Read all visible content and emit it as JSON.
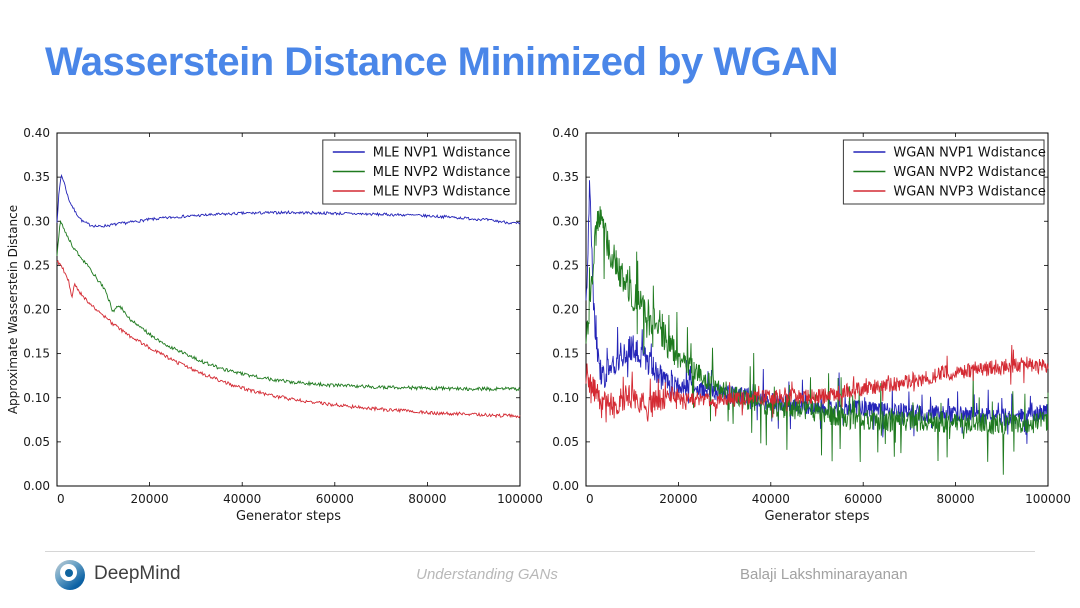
{
  "slide": {
    "title": "Wasserstein Distance Minimized by WGAN",
    "title_color": "#4a86e8"
  },
  "footer": {
    "logo_icon": "deepmind-swirl-icon",
    "brand": "DeepMind",
    "center_text": "Understanding GANs",
    "right_text": "Balaji Lakshminarayanan"
  },
  "chart_data": [
    {
      "type": "line",
      "title": "",
      "xlabel": "Generator steps",
      "ylabel": "Approximate Wasserstein Distance",
      "xlim": [
        0,
        100000
      ],
      "ylim": [
        0.0,
        0.4
      ],
      "grid": false,
      "legend_position": "upper right",
      "xticks": [
        0,
        20000,
        40000,
        60000,
        80000,
        100000
      ],
      "xtick_labels": [
        "0",
        "20000",
        "40000",
        "60000",
        "80000",
        "100000"
      ],
      "yticks": [
        0.0,
        0.05,
        0.1,
        0.15,
        0.2,
        0.25,
        0.3,
        0.35,
        0.4
      ],
      "ytick_labels": [
        "0.00",
        "0.05",
        "0.10",
        "0.15",
        "0.20",
        "0.25",
        "0.30",
        "0.35",
        "0.40"
      ],
      "series": [
        {
          "name": "MLE NVP1 Wdistance",
          "color": "#2424b8",
          "noise": 0.0016,
          "spike": 0,
          "keypoints": [
            [
              0,
              0.3
            ],
            [
              400,
              0.33
            ],
            [
              900,
              0.353
            ],
            [
              1500,
              0.345
            ],
            [
              2500,
              0.325
            ],
            [
              4000,
              0.31
            ],
            [
              5500,
              0.3
            ],
            [
              7000,
              0.296
            ],
            [
              9000,
              0.294
            ],
            [
              12000,
              0.296
            ],
            [
              16000,
              0.299
            ],
            [
              20000,
              0.302
            ],
            [
              26000,
              0.305
            ],
            [
              32000,
              0.307
            ],
            [
              40000,
              0.309
            ],
            [
              50000,
              0.31
            ],
            [
              60000,
              0.309
            ],
            [
              68000,
              0.308
            ],
            [
              76000,
              0.307
            ],
            [
              84000,
              0.305
            ],
            [
              92000,
              0.302
            ],
            [
              100000,
              0.297
            ]
          ]
        },
        {
          "name": "MLE NVP2 Wdistance",
          "color": "#1f7a1f",
          "noise": 0.002,
          "spike": 0,
          "keypoints": [
            [
              0,
              0.262
            ],
            [
              700,
              0.3
            ],
            [
              1500,
              0.292
            ],
            [
              3000,
              0.275
            ],
            [
              5000,
              0.26
            ],
            [
              7000,
              0.247
            ],
            [
              9000,
              0.232
            ],
            [
              10500,
              0.222
            ],
            [
              11500,
              0.206
            ],
            [
              12200,
              0.196
            ],
            [
              13000,
              0.205
            ],
            [
              14000,
              0.202
            ],
            [
              15000,
              0.192
            ],
            [
              16500,
              0.186
            ],
            [
              18000,
              0.18
            ],
            [
              20000,
              0.172
            ],
            [
              22000,
              0.165
            ],
            [
              24000,
              0.159
            ],
            [
              26000,
              0.154
            ],
            [
              28000,
              0.149
            ],
            [
              30000,
              0.144
            ],
            [
              33000,
              0.138
            ],
            [
              36000,
              0.132
            ],
            [
              40000,
              0.127
            ],
            [
              45000,
              0.122
            ],
            [
              50000,
              0.118
            ],
            [
              55000,
              0.116
            ],
            [
              60000,
              0.114
            ],
            [
              70000,
              0.112
            ],
            [
              80000,
              0.111
            ],
            [
              90000,
              0.11
            ],
            [
              100000,
              0.11
            ]
          ]
        },
        {
          "name": "MLE NVP3 Wdistance",
          "color": "#d42a33",
          "noise": 0.002,
          "spike": 0,
          "keypoints": [
            [
              0,
              0.255
            ],
            [
              1200,
              0.247
            ],
            [
              2500,
              0.232
            ],
            [
              3200,
              0.213
            ],
            [
              3800,
              0.228
            ],
            [
              5000,
              0.219
            ],
            [
              6500,
              0.21
            ],
            [
              8000,
              0.202
            ],
            [
              10000,
              0.193
            ],
            [
              12000,
              0.184
            ],
            [
              14000,
              0.176
            ],
            [
              16000,
              0.169
            ],
            [
              18000,
              0.163
            ],
            [
              20000,
              0.157
            ],
            [
              23000,
              0.148
            ],
            [
              26000,
              0.14
            ],
            [
              29000,
              0.133
            ],
            [
              32000,
              0.126
            ],
            [
              35000,
              0.12
            ],
            [
              38000,
              0.114
            ],
            [
              42000,
              0.108
            ],
            [
              46000,
              0.103
            ],
            [
              50000,
              0.099
            ],
            [
              55000,
              0.095
            ],
            [
              60000,
              0.092
            ],
            [
              65000,
              0.089
            ],
            [
              70000,
              0.087
            ],
            [
              75000,
              0.085
            ],
            [
              80000,
              0.083
            ],
            [
              85000,
              0.082
            ],
            [
              90000,
              0.081
            ],
            [
              95000,
              0.08
            ],
            [
              100000,
              0.079
            ]
          ]
        }
      ]
    },
    {
      "type": "line",
      "title": "",
      "xlabel": "Generator steps",
      "ylabel": "",
      "xlim": [
        0,
        100000
      ],
      "ylim": [
        0.0,
        0.4
      ],
      "grid": false,
      "legend_position": "upper right",
      "xticks": [
        0,
        20000,
        40000,
        60000,
        80000,
        100000
      ],
      "xtick_labels": [
        "0",
        "20000",
        "40000",
        "60000",
        "80000",
        "100000"
      ],
      "yticks": [
        0.0,
        0.05,
        0.1,
        0.15,
        0.2,
        0.25,
        0.3,
        0.35,
        0.4
      ],
      "ytick_labels": [
        "0.00",
        "0.05",
        "0.10",
        "0.15",
        "0.20",
        "0.25",
        "0.30",
        "0.35",
        "0.40"
      ],
      "series": [
        {
          "name": "WGAN NVP1 Wdistance",
          "color": "#2424b8",
          "noise": 0.01,
          "spike": 0.034,
          "keypoints": [
            [
              0,
              0.205
            ],
            [
              500,
              0.28
            ],
            [
              800,
              0.352
            ],
            [
              1200,
              0.27
            ],
            [
              1800,
              0.19
            ],
            [
              2500,
              0.15
            ],
            [
              3200,
              0.128
            ],
            [
              4000,
              0.125
            ],
            [
              5000,
              0.133
            ],
            [
              6500,
              0.142
            ],
            [
              8000,
              0.15
            ],
            [
              9500,
              0.156
            ],
            [
              11000,
              0.153
            ],
            [
              12500,
              0.146
            ],
            [
              14000,
              0.137
            ],
            [
              15500,
              0.125
            ],
            [
              17000,
              0.117
            ],
            [
              19000,
              0.112
            ],
            [
              21000,
              0.112
            ],
            [
              24000,
              0.11
            ],
            [
              27000,
              0.108
            ],
            [
              30000,
              0.106
            ],
            [
              33000,
              0.103
            ],
            [
              36000,
              0.1
            ],
            [
              40000,
              0.096
            ],
            [
              44000,
              0.093
            ],
            [
              48000,
              0.091
            ],
            [
              52000,
              0.089
            ],
            [
              56000,
              0.088
            ],
            [
              60000,
              0.087
            ],
            [
              65000,
              0.085
            ],
            [
              70000,
              0.084
            ],
            [
              75000,
              0.082
            ],
            [
              80000,
              0.081
            ],
            [
              85000,
              0.079
            ],
            [
              90000,
              0.078
            ],
            [
              95000,
              0.08
            ],
            [
              100000,
              0.084
            ]
          ]
        },
        {
          "name": "WGAN NVP2 Wdistance",
          "color": "#1f7a1f",
          "noise": 0.012,
          "spike": 0.05,
          "keypoints": [
            [
              0,
              0.165
            ],
            [
              1000,
              0.21
            ],
            [
              2000,
              0.28
            ],
            [
              2800,
              0.31
            ],
            [
              3500,
              0.292
            ],
            [
              4500,
              0.278
            ],
            [
              5500,
              0.262
            ],
            [
              6500,
              0.252
            ],
            [
              7500,
              0.24
            ],
            [
              8500,
              0.228
            ],
            [
              9500,
              0.22
            ],
            [
              10500,
              0.213
            ],
            [
              12000,
              0.205
            ],
            [
              13500,
              0.195
            ],
            [
              15000,
              0.185
            ],
            [
              16500,
              0.173
            ],
            [
              18000,
              0.16
            ],
            [
              19500,
              0.15
            ],
            [
              21000,
              0.143
            ],
            [
              23000,
              0.133
            ],
            [
              25000,
              0.125
            ],
            [
              27000,
              0.118
            ],
            [
              29000,
              0.111
            ],
            [
              31000,
              0.105
            ],
            [
              33000,
              0.1
            ],
            [
              35000,
              0.096
            ],
            [
              37000,
              0.092
            ],
            [
              39000,
              0.089
            ],
            [
              41000,
              0.086
            ],
            [
              44000,
              0.086
            ],
            [
              47000,
              0.088
            ],
            [
              50000,
              0.084
            ],
            [
              53000,
              0.08
            ],
            [
              56000,
              0.077
            ],
            [
              60000,
              0.075
            ],
            [
              65000,
              0.074
            ],
            [
              70000,
              0.073
            ],
            [
              75000,
              0.073
            ],
            [
              80000,
              0.072
            ],
            [
              85000,
              0.071
            ],
            [
              90000,
              0.07
            ],
            [
              95000,
              0.071
            ],
            [
              100000,
              0.073
            ]
          ]
        },
        {
          "name": "WGAN NVP3 Wdistance",
          "color": "#d42a33",
          "noise": 0.009,
          "spike": 0.02,
          "keypoints": [
            [
              0,
              0.128
            ],
            [
              1500,
              0.112
            ],
            [
              3000,
              0.1
            ],
            [
              4500,
              0.092
            ],
            [
              6000,
              0.088
            ],
            [
              7500,
              0.097
            ],
            [
              9000,
              0.102
            ],
            [
              10500,
              0.098
            ],
            [
              12000,
              0.094
            ],
            [
              14000,
              0.092
            ],
            [
              16000,
              0.098
            ],
            [
              18000,
              0.102
            ],
            [
              20000,
              0.1
            ],
            [
              23000,
              0.098
            ],
            [
              26000,
              0.097
            ],
            [
              29000,
              0.096
            ],
            [
              32000,
              0.098
            ],
            [
              35000,
              0.1
            ],
            [
              38000,
              0.1
            ],
            [
              41000,
              0.101
            ],
            [
              44000,
              0.102
            ],
            [
              47000,
              0.101
            ],
            [
              50000,
              0.101
            ],
            [
              53000,
              0.104
            ],
            [
              56000,
              0.107
            ],
            [
              60000,
              0.11
            ],
            [
              64000,
              0.113
            ],
            [
              68000,
              0.117
            ],
            [
              72000,
              0.121
            ],
            [
              76000,
              0.126
            ],
            [
              80000,
              0.13
            ],
            [
              84000,
              0.132
            ],
            [
              88000,
              0.134
            ],
            [
              92000,
              0.136
            ],
            [
              96000,
              0.139
            ],
            [
              100000,
              0.136
            ]
          ]
        }
      ]
    }
  ]
}
